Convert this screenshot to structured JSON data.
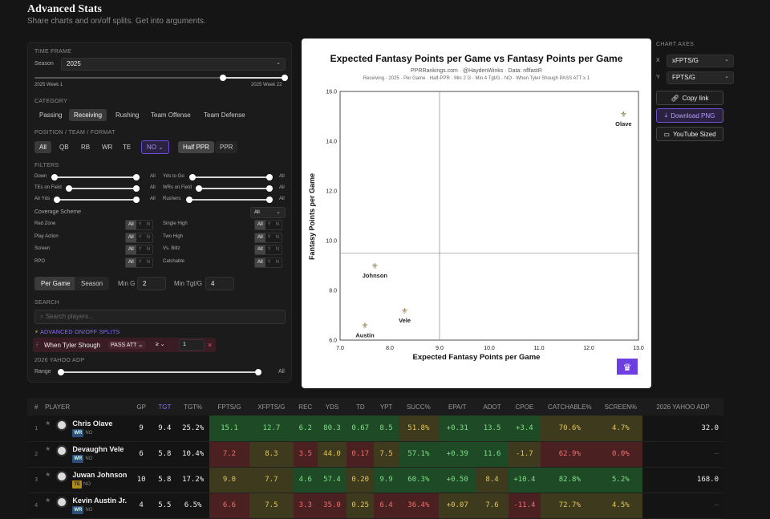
{
  "app": {
    "title": "Advanced Stats",
    "subtitle": "Share charts and on/off splits. Get into arguments."
  },
  "panel": {
    "timeframe": {
      "heading": "TIME FRAME",
      "season_label": "Season",
      "season_value": "2025",
      "range_start": "2025 Week 1",
      "range_end": "2025 Week 22"
    },
    "category": {
      "heading": "CATEGORY",
      "options": [
        "Passing",
        "Receiving",
        "Rushing",
        "Team Offense",
        "Team Defense"
      ],
      "selected": "Receiving"
    },
    "position": {
      "heading": "POSITION / TEAM / FORMAT",
      "positions": [
        "All",
        "QB",
        "RB",
        "WR",
        "TE"
      ],
      "team": "NO",
      "formats": [
        "Half PPR",
        "PPR"
      ]
    },
    "filters": {
      "heading": "FILTERS",
      "sliders_left": [
        {
          "label": "Down",
          "value": "All"
        },
        {
          "label": "TEs on Field",
          "value": "All"
        },
        {
          "label": "Air Yds",
          "value": "All"
        }
      ],
      "sliders_right": [
        {
          "label": "Yds to Go",
          "value": "All"
        },
        {
          "label": "WRs on Field",
          "value": "All"
        },
        {
          "label": "Rushers",
          "value": "All"
        }
      ],
      "coverage_label": "Coverage Scheme",
      "coverage_value": "All",
      "toggles_left": [
        "Red Zone",
        "Play Action",
        "Screen",
        "RPO"
      ],
      "toggles_right": [
        "Single High",
        "Two High",
        "Vs. Blitz",
        "Catchable"
      ],
      "toggle_opts": [
        "All",
        "Y",
        "N"
      ]
    },
    "mode": {
      "options": [
        "Per Game",
        "Season"
      ],
      "selected": "Per Game",
      "min_g_label": "Min G",
      "min_g": "2",
      "min_tgt_label": "Min Tgt/G",
      "min_tgt": "4"
    },
    "search": {
      "heading": "SEARCH",
      "placeholder": "Search players..."
    },
    "splits": {
      "heading": "ADVANCED ON/OFF SPLITS",
      "when": "When Tyler Shough",
      "stat": "PASS ATT",
      "op": "≥",
      "value": "1"
    },
    "adp": {
      "heading": "2026 YAHOO ADP",
      "range_label": "Range",
      "value": "All"
    }
  },
  "chart_data": {
    "type": "scatter",
    "title": "Expected Fantasy Points per Game vs Fantasy Points per Game",
    "subtitle1": "PPRRankings.com · @HaydenWinks · Data: nflfastR",
    "subtitle2": "Receiving · 2025 · Per Game · Half-PPR · Min 2 G · Min 4 Tgt/G · NO · When Tyler Shough PASS ATT ≥ 1",
    "xlabel": "Expected Fantasy Points per Game",
    "ylabel": "Fantasy Points per Game",
    "xlim": [
      7,
      13
    ],
    "ylim": [
      6,
      16
    ],
    "xticks": [
      "7.0",
      "8.0",
      "9.0",
      "10.0",
      "11.0",
      "12.0",
      "13.0"
    ],
    "yticks": [
      "6.0",
      "8.0",
      "10.0",
      "12.0",
      "14.0",
      "16.0"
    ],
    "mean_x": 9.0,
    "mean_y": 9.5,
    "points": [
      {
        "label": "Olave",
        "x": 12.7,
        "y": 15.1
      },
      {
        "label": "Johnson",
        "x": 7.7,
        "y": 9.0
      },
      {
        "label": "Vele",
        "x": 8.3,
        "y": 7.2
      },
      {
        "label": "Austin",
        "x": 7.5,
        "y": 6.6
      }
    ]
  },
  "axes": {
    "heading": "CHART AXES",
    "x_label": "X",
    "x_value": "xFPTS/G",
    "y_label": "Y",
    "y_value": "FPTS/G"
  },
  "actions": {
    "copy": "Copy link",
    "download": "Download PNG",
    "youtube": "YouTube Sized"
  },
  "table": {
    "headers": [
      "#",
      "PLAYER",
      "GP",
      "TGT",
      "TGT%",
      "FPTS/G",
      "XFPTS/G",
      "REC",
      "YDS",
      "TD",
      "YPT",
      "SUCC%",
      "EPA/T",
      "ADOT",
      "CPOE",
      "CATCHABLE%",
      "SCREEN%",
      "2026 YAHOO ADP"
    ],
    "rows": [
      {
        "n": "1",
        "name": "Chris Olave",
        "pos": "WR",
        "team": "NO",
        "vals": [
          "9",
          "9.4",
          "25.2%",
          "15.1",
          "12.7",
          "6.2",
          "80.3",
          "0.67",
          "8.5",
          "51.8%",
          "+0.31",
          "13.5",
          "+3.4",
          "70.6%",
          "4.7%",
          "32.0"
        ]
      },
      {
        "n": "2",
        "name": "Devaughn Vele",
        "pos": "WR",
        "team": "NO",
        "vals": [
          "6",
          "5.8",
          "10.4%",
          "7.2",
          "8.3",
          "3.5",
          "44.0",
          "0.17",
          "7.5",
          "57.1%",
          "+0.39",
          "11.6",
          "-1.7",
          "62.9%",
          "0.0%",
          "—"
        ]
      },
      {
        "n": "3",
        "name": "Juwan Johnson",
        "pos": "TE",
        "team": "NO",
        "vals": [
          "10",
          "5.8",
          "17.2%",
          "9.0",
          "7.7",
          "4.6",
          "57.4",
          "0.20",
          "9.9",
          "60.3%",
          "+0.50",
          "8.4",
          "+10.4",
          "82.8%",
          "5.2%",
          "168.0"
        ]
      },
      {
        "n": "4",
        "name": "Kevin Austin Jr.",
        "pos": "WR",
        "team": "NO",
        "vals": [
          "4",
          "5.5",
          "6.5%",
          "6.6",
          "7.5",
          "3.3",
          "35.0",
          "0.25",
          "6.4",
          "36.4%",
          "+0.07",
          "7.6",
          "-11.4",
          "72.7%",
          "4.5%",
          "—"
        ]
      }
    ],
    "colors": [
      [
        "",
        "",
        "",
        "#1f4a26",
        "#1f4a26",
        "#1f4a26",
        "#1f4a26",
        "#1f4a26",
        "#1f4a26",
        "#3d3a1e",
        "#1f4a26",
        "#1f4a26",
        "#1f4a26",
        "#3d3a1e",
        "#3d3a1e",
        ""
      ],
      [
        "",
        "",
        "",
        "#4a2020",
        "#3d3a1e",
        "#4a2020",
        "#3d3a1e",
        "#4a2020",
        "#3d3a1e",
        "#1f4a26",
        "#1f4a26",
        "#1f4a26",
        "#3d3a1e",
        "#4a2020",
        "#4a2020",
        ""
      ],
      [
        "",
        "",
        "",
        "#3d3a1e",
        "#3d3a1e",
        "#1f4a26",
        "#1f4a26",
        "#3d3a1e",
        "#1f4a26",
        "#1f4a26",
        "#1f4a26",
        "#3d3a1e",
        "#1f4a26",
        "#1f4a26",
        "#1f4a26",
        ""
      ],
      [
        "",
        "",
        "",
        "#4a2020",
        "#3d3a1e",
        "#4a2020",
        "#4a2020",
        "#3d3a1e",
        "#4a2020",
        "#4a2020",
        "#3d3a1e",
        "#3d3a1e",
        "#4a2020",
        "#3d3a1e",
        "#3d3a1e",
        ""
      ]
    ],
    "text_colors": [
      [
        "",
        "",
        "",
        "#7ee08a",
        "#7ee08a",
        "#7ee08a",
        "#7ee08a",
        "#7ee08a",
        "#7ee08a",
        "#e5c65a",
        "#7ee08a",
        "#7ee08a",
        "#7ee08a",
        "#e5c65a",
        "#e5c65a",
        ""
      ],
      [
        "",
        "",
        "",
        "#f07070",
        "#e5c65a",
        "#f07070",
        "#e5c65a",
        "#f07070",
        "#e5c65a",
        "#7ee08a",
        "#7ee08a",
        "#7ee08a",
        "#e5c65a",
        "#f07070",
        "#f07070",
        ""
      ],
      [
        "",
        "",
        "",
        "#e5c65a",
        "#e5c65a",
        "#7ee08a",
        "#7ee08a",
        "#e5c65a",
        "#7ee08a",
        "#7ee08a",
        "#7ee08a",
        "#e5c65a",
        "#7ee08a",
        "#7ee08a",
        "#7ee08a",
        ""
      ],
      [
        "",
        "",
        "",
        "#f07070",
        "#e5c65a",
        "#f07070",
        "#f07070",
        "#e5c65a",
        "#f07070",
        "#f07070",
        "#e5c65a",
        "#e5c65a",
        "#f07070",
        "#e5c65a",
        "#e5c65a",
        ""
      ]
    ]
  }
}
